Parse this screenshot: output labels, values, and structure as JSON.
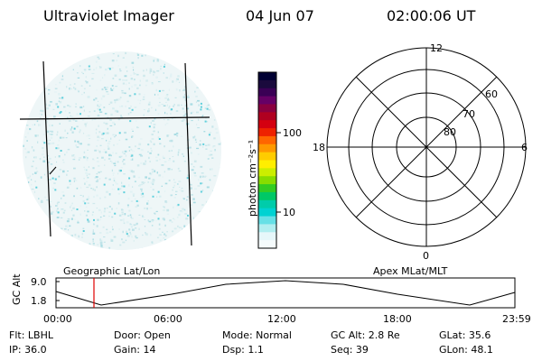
{
  "header": {
    "instrument": "Ultraviolet Imager",
    "date": "04 Jun 07",
    "time": "02:00:06 UT"
  },
  "colorbar": {
    "unit_label": "photon cm⁻²s⁻¹",
    "ticks": [
      "100",
      "10"
    ],
    "colors": [
      "#000033",
      "#1a0a3d",
      "#3a0055",
      "#660066",
      "#8a0040",
      "#b00020",
      "#d40010",
      "#ee2200",
      "#ff6600",
      "#ff9900",
      "#ffcc00",
      "#ffee00",
      "#ccee00",
      "#88dd00",
      "#33cc22",
      "#00c866",
      "#00ccaa",
      "#00d2d2",
      "#66e0e6",
      "#b0eef0",
      "#e6f7fa",
      "#f5fbfc"
    ]
  },
  "polar_plot": {
    "labels_mlt": [
      "12",
      "18",
      "6",
      "0"
    ],
    "labels_mlat": [
      "60",
      "70",
      "80"
    ]
  },
  "timeline": {
    "left_caption": "Geographic Lat/Lon",
    "right_caption": "Apex MLat/MLT",
    "axis_title": "GC Alt",
    "y_ticks": [
      "9.0",
      "1.8"
    ],
    "x_ticks": [
      "00:00",
      "06:00",
      "12:00",
      "18:00",
      "23:59"
    ],
    "marker_time": "02:00"
  },
  "status": {
    "flt": "Flt: LBHL",
    "ip": "IP: 36.0",
    "door": "Door: Open",
    "gain": "Gain: 14",
    "mode": "Mode: Normal",
    "dsp": "Dsp:    1.1",
    "gc_alt": "GC Alt: 2.8 Re",
    "seq": "Seq: 39",
    "glat": "GLat:   35.6",
    "glon": "GLon:   48.1"
  }
}
